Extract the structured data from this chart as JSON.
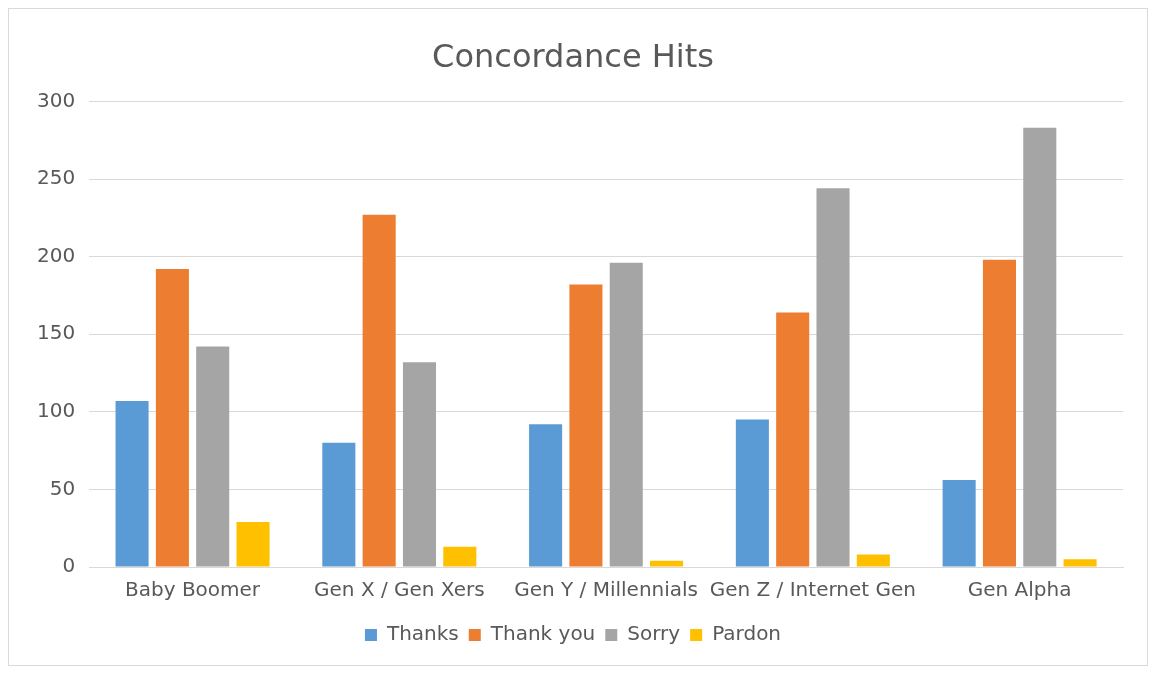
{
  "chart_data": {
    "type": "bar",
    "title": "Concordance Hits",
    "categories": [
      "Baby Boomer",
      "Gen X / Gen Xers",
      "Gen Y / Millennials",
      "Gen Z / Internet Gen",
      "Gen Alpha"
    ],
    "series": [
      {
        "name": "Thanks",
        "color": "#5b9bd5",
        "values": [
          107,
          80,
          92,
          95,
          56
        ]
      },
      {
        "name": "Thank you",
        "color": "#ed7d31",
        "values": [
          192,
          227,
          182,
          164,
          198
        ]
      },
      {
        "name": "Sorry",
        "color": "#a5a5a5",
        "values": [
          142,
          132,
          196,
          244,
          283
        ]
      },
      {
        "name": "Pardon",
        "color": "#ffc000",
        "values": [
          29,
          13,
          4,
          8,
          5
        ]
      }
    ],
    "ylim": [
      0,
      300
    ],
    "yticks": [
      0,
      50,
      100,
      150,
      200,
      250,
      300
    ],
    "grid": "y",
    "legend": "bottom"
  }
}
